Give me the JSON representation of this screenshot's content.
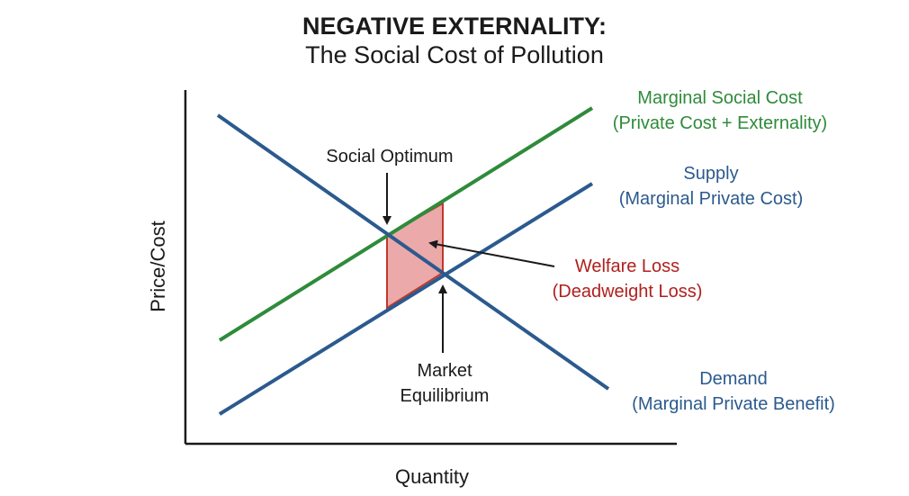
{
  "title": {
    "line1": "NEGATIVE EXTERNALITY:",
    "line2": "The Social Cost of Pollution"
  },
  "axes": {
    "x_label": "Quantity",
    "y_label": "Price/Cost"
  },
  "curves": {
    "msc": {
      "label_line1": "Marginal Social Cost",
      "label_line2": "(Private Cost + Externality)",
      "color": "#2e8b3a"
    },
    "supply": {
      "label_line1": "Supply",
      "label_line2": "(Marginal Private Cost)",
      "color": "#2b5a8e"
    },
    "demand": {
      "label_line1": "Demand",
      "label_line2": "(Marginal Private Benefit)",
      "color": "#2b5a8e"
    }
  },
  "annotations": {
    "social_optimum": "Social Optimum",
    "welfare_loss_line1": "Welfare Loss",
    "welfare_loss_line2": "(Deadweight Loss)",
    "market_eq_line1": "Market",
    "market_eq_line2": "Equilibrium"
  },
  "colors": {
    "welfare_loss_text": "#b0201e",
    "welfare_loss_fill": "#e89a9a",
    "welfare_loss_stroke": "#c0392b",
    "axis": "#1a1a1a"
  }
}
